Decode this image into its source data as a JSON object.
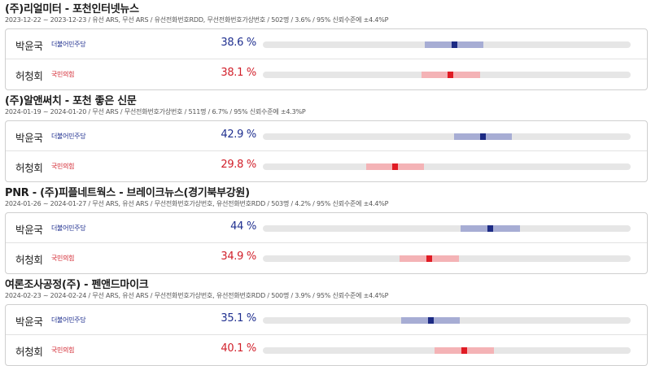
{
  "scale": {
    "min": 10,
    "max": 65
  },
  "colors": {
    "party1_text": "#1f2f8f",
    "party1_point": "#1c2a84",
    "party1_band": "#a7add4",
    "party2_text": "#d11f2a",
    "party2_point": "#e01b24",
    "party2_band": "#f4b3b6"
  },
  "polls": [
    {
      "title": "(주)리얼미터 - 포천인터넷뉴스",
      "meta": "2023-12-22 ~ 2023-12-23 / 유선 ARS, 무선 ARS / 유선전화번호RDD, 무선전화번호가상번호 / 502명 / 3.6% / 95% 신뢰수준에 ±4.4%P",
      "candidates": [
        {
          "name": "박윤국",
          "party": "더불어민주당",
          "pct_text": "38.6 %",
          "value": 38.6,
          "moe": 4.4,
          "party_index": 1
        },
        {
          "name": "허청회",
          "party": "국민의힘",
          "pct_text": "38.1 %",
          "value": 38.1,
          "moe": 4.4,
          "party_index": 2
        }
      ]
    },
    {
      "title": "(주)알앤써치 - 포천 좋은 신문",
      "meta": "2024-01-19 ~ 2024-01-20 / 무선 ARS / 무선전화번호가상번호 / 511명 / 6.7% / 95% 신뢰수준에 ±4.3%P",
      "candidates": [
        {
          "name": "박윤국",
          "party": "더불어민주당",
          "pct_text": "42.9 %",
          "value": 42.9,
          "moe": 4.3,
          "party_index": 1
        },
        {
          "name": "허청회",
          "party": "국민의힘",
          "pct_text": "29.8 %",
          "value": 29.8,
          "moe": 4.3,
          "party_index": 2
        }
      ]
    },
    {
      "title": "PNR - (주)피플네트웍스 - 브레이크뉴스(경기북부강원)",
      "meta": "2024-01-26 ~ 2024-01-27 / 무선 ARS, 유선 ARS / 무선전화번호가상번호, 유선전화번호RDD / 503명 / 4.2% / 95% 신뢰수준에 ±4.4%P",
      "candidates": [
        {
          "name": "박윤국",
          "party": "더불어민주당",
          "pct_text": "44 %",
          "value": 44,
          "moe": 4.4,
          "party_index": 1
        },
        {
          "name": "허청회",
          "party": "국민의힘",
          "pct_text": "34.9 %",
          "value": 34.9,
          "moe": 4.4,
          "party_index": 2
        }
      ]
    },
    {
      "title": "여론조사공정(주) - 펜앤드마이크",
      "meta": "2024-02-23 ~ 2024-02-24 / 무선 ARS, 유선 ARS / 무선전화번호가상번호, 유선전화번호RDD / 500명 / 3.9% / 95% 신뢰수준에 ±4.4%P",
      "candidates": [
        {
          "name": "박윤국",
          "party": "더불어민주당",
          "pct_text": "35.1 %",
          "value": 35.1,
          "moe": 4.4,
          "party_index": 1
        },
        {
          "name": "허청회",
          "party": "국민의힘",
          "pct_text": "40.1 %",
          "value": 40.1,
          "moe": 4.4,
          "party_index": 2
        }
      ]
    }
  ],
  "chart_data": {
    "type": "dot-interval",
    "categories": [
      "(주)리얼미터 - 포천인터넷뉴스",
      "(주)알앤써치 - 포천 좋은 신문",
      "PNR - (주)피플네트웍스 - 브레이크뉴스(경기북부강원)",
      "여론조사공정(주) - 펜앤드마이크"
    ],
    "series": [
      {
        "name": "박윤국",
        "values": [
          38.6,
          42.9,
          44,
          35.1
        ],
        "moe": [
          4.4,
          4.3,
          4.4,
          4.4
        ]
      },
      {
        "name": "허청회",
        "values": [
          38.1,
          29.8,
          34.9,
          40.1
        ],
        "moe": [
          4.4,
          4.3,
          4.4,
          4.4
        ]
      }
    ]
  }
}
